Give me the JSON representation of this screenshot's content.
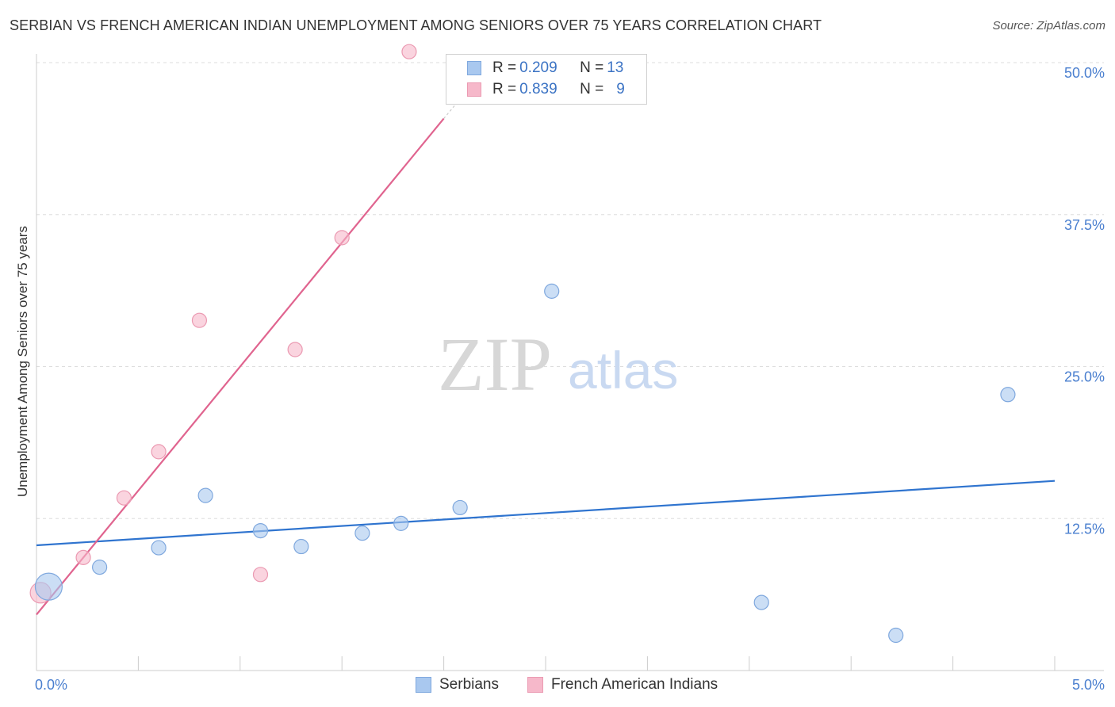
{
  "header": {
    "title": "SERBIAN VS FRENCH AMERICAN INDIAN UNEMPLOYMENT AMONG SENIORS OVER 75 YEARS CORRELATION CHART",
    "source": "Source: ZipAtlas.com"
  },
  "watermark": {
    "zip": "ZIP",
    "atlas": "atlas"
  },
  "legend_stats": [
    {
      "r_label": "R = ",
      "r_value": "0.209",
      "n_label": "N = ",
      "n_value": "13",
      "color": "#a9c8ef"
    },
    {
      "r_label": "R = ",
      "r_value": "0.839",
      "n_label": "N = ",
      "n_value": "9",
      "color": "#f6b8ca"
    }
  ],
  "chart_data": {
    "type": "scatter",
    "title": "SERBIAN VS FRENCH AMERICAN INDIAN UNEMPLOYMENT AMONG SENIORS OVER 75 YEARS CORRELATION CHART",
    "xlabel": "",
    "ylabel": "Unemployment Among Seniors over 75 years",
    "xlim": [
      0,
      5
    ],
    "ylim": [
      0,
      50
    ],
    "x_tick_labels": [
      "0.0%",
      "5.0%"
    ],
    "y_ticks": [
      12.5,
      25.0,
      37.5,
      50.0
    ],
    "y_tick_labels": [
      "12.5%",
      "25.0%",
      "37.5%",
      "50.0%"
    ],
    "series": [
      {
        "name": "Serbians",
        "color": "#a9c8ef",
        "stroke": "#7fa8de",
        "line_color": "#2f74cf",
        "points": [
          {
            "x": 0.06,
            "y": 6.9,
            "size": 34
          },
          {
            "x": 0.31,
            "y": 8.5,
            "size": 18
          },
          {
            "x": 0.6,
            "y": 10.1,
            "size": 18
          },
          {
            "x": 0.83,
            "y": 14.4,
            "size": 18
          },
          {
            "x": 1.1,
            "y": 11.5,
            "size": 18
          },
          {
            "x": 1.3,
            "y": 10.2,
            "size": 18
          },
          {
            "x": 1.6,
            "y": 11.3,
            "size": 18
          },
          {
            "x": 1.79,
            "y": 12.1,
            "size": 18
          },
          {
            "x": 2.08,
            "y": 13.4,
            "size": 18
          },
          {
            "x": 2.53,
            "y": 31.2,
            "size": 18
          },
          {
            "x": 3.56,
            "y": 5.6,
            "size": 18
          },
          {
            "x": 4.22,
            "y": 2.9,
            "size": 18
          },
          {
            "x": 4.77,
            "y": 22.7,
            "size": 18
          }
        ],
        "trend": {
          "x0": 0.0,
          "y0": 10.3,
          "x1": 5.0,
          "y1": 15.6
        }
      },
      {
        "name": "French American Indians",
        "color": "#f6b8ca",
        "stroke": "#eb9ab2",
        "line_color": "#e0648f",
        "points": [
          {
            "x": 0.02,
            "y": 6.4,
            "size": 26
          },
          {
            "x": 0.23,
            "y": 9.3,
            "size": 18
          },
          {
            "x": 0.43,
            "y": 14.2,
            "size": 18
          },
          {
            "x": 0.6,
            "y": 18.0,
            "size": 18
          },
          {
            "x": 0.8,
            "y": 28.8,
            "size": 18
          },
          {
            "x": 1.1,
            "y": 7.9,
            "size": 18
          },
          {
            "x": 1.27,
            "y": 26.4,
            "size": 18
          },
          {
            "x": 1.5,
            "y": 35.6,
            "size": 18
          },
          {
            "x": 1.83,
            "y": 50.9,
            "size": 18
          }
        ],
        "trend": {
          "x0": 0.0,
          "y0": 4.6,
          "x1": 2.0,
          "y1": 45.4
        },
        "trend_dashed_extension": {
          "x0": 2.0,
          "y0": 45.4,
          "x1": 2.06,
          "y1": 46.6
        }
      }
    ]
  }
}
